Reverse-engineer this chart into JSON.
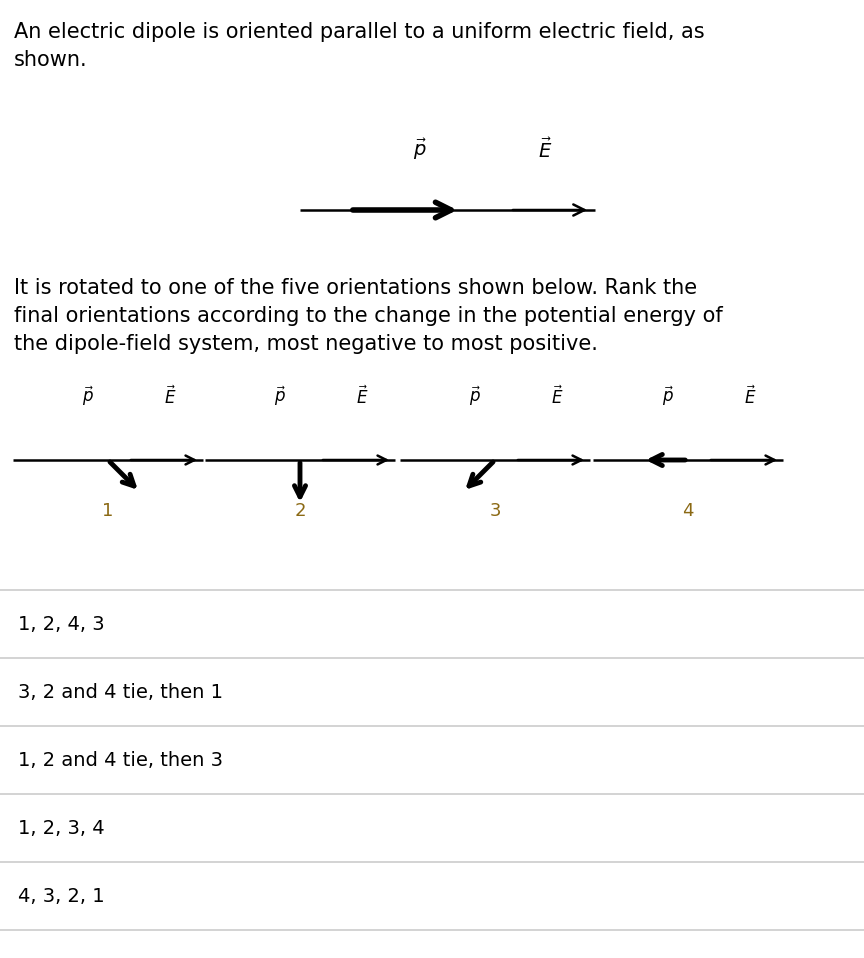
{
  "title_text": "An electric dipole is oriented parallel to a uniform electric field, as\nshown.",
  "body_text": "It is rotated to one of the five orientations shown below. Rank the\nfinal orientations according to the change in the potential energy of\nthe dipole-field system, most negative to most positive.",
  "options": [
    "1, 2, 4, 3",
    "3, 2 and 4 tie, then 1",
    "1, 2 and 4 tie, then 3",
    "1, 2, 3, 4",
    "4, 3, 2, 1"
  ],
  "bg_color": "#ffffff",
  "text_color": "#000000",
  "number_color": "#8B6914",
  "line_color": "#cccccc",
  "dipole_angles_deg": [
    45,
    90,
    135,
    180
  ],
  "dipole_labels": [
    "1",
    "2",
    "3",
    "4"
  ]
}
